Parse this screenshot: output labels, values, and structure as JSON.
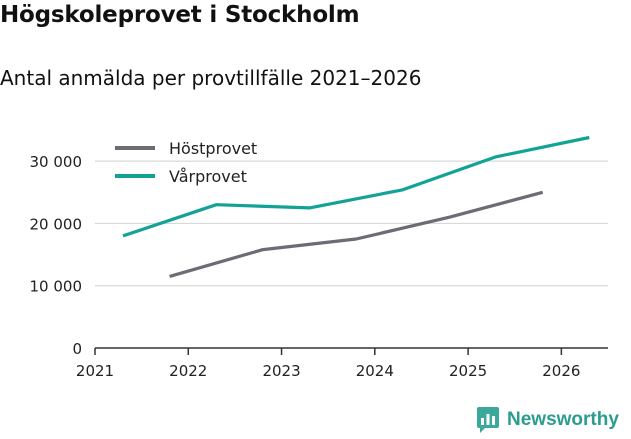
{
  "title": "Högskoleprovet i Stockholm",
  "subtitle": "Antal anmälda per provtillfälle 2021–2026",
  "brand": {
    "name": "Newsworthy",
    "icon": "bar-chart-bubble-icon",
    "color": "#3aa89b"
  },
  "chart_data": {
    "type": "line",
    "title": "Högskoleprovet i Stockholm",
    "subtitle": "Antal anmälda per provtillfälle 2021–2026",
    "xlabel": "",
    "ylabel": "",
    "xlim": [
      2021,
      2026.5
    ],
    "ylim": [
      0,
      35000
    ],
    "x_ticks": [
      2021,
      2022,
      2023,
      2024,
      2025,
      2026
    ],
    "x_tick_labels": [
      "2021",
      "2022",
      "2023",
      "2024",
      "2025",
      "2026"
    ],
    "y_ticks": [
      0,
      10000,
      20000,
      30000
    ],
    "y_tick_labels": [
      "0",
      "10 000",
      "20 000",
      "30 000"
    ],
    "grid": true,
    "legend_position": "top-left",
    "series": [
      {
        "name": "Höstprovet",
        "color": "#6e6b75",
        "x": [
          2021.8,
          2022.8,
          2023.8,
          2024.8,
          2025.8
        ],
        "values": [
          11500,
          15800,
          17500,
          21000,
          25000
        ]
      },
      {
        "name": "Vårprovet",
        "color": "#13a396",
        "x": [
          2021.3,
          2022.3,
          2023.3,
          2024.3,
          2025.3,
          2026.3
        ],
        "values": [
          18000,
          23000,
          22500,
          25400,
          30700,
          33800
        ]
      }
    ]
  }
}
